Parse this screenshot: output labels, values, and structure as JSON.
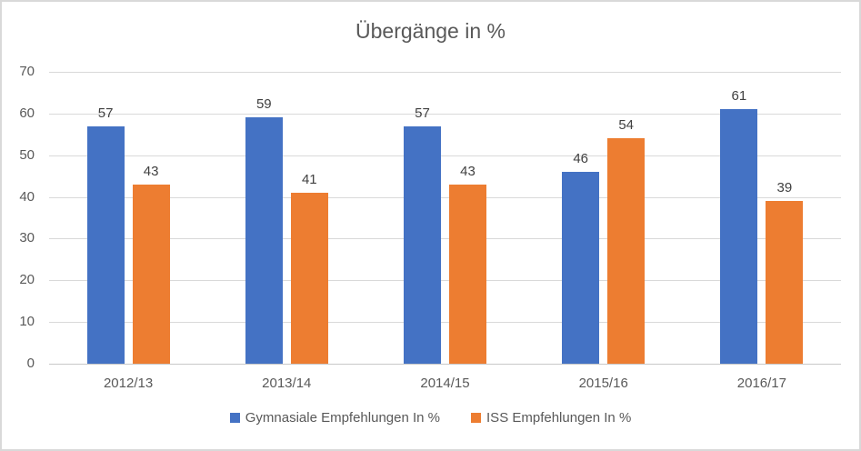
{
  "chart_data": {
    "type": "bar",
    "title": "Übergänge in %",
    "categories": [
      "2012/13",
      "2013/14",
      "2014/15",
      "2015/16",
      "2016/17"
    ],
    "series": [
      {
        "name": "Gymnasiale Empfehlungen In %",
        "color": "#4472C4",
        "values": [
          57,
          59,
          57,
          46,
          61
        ]
      },
      {
        "name": "ISS Empfehlungen In %",
        "color": "#ED7D31",
        "values": [
          43,
          41,
          43,
          54,
          39
        ]
      }
    ],
    "xlabel": "",
    "ylabel": "",
    "ylim": [
      0,
      70
    ],
    "yticks": [
      0,
      10,
      20,
      30,
      40,
      50,
      60,
      70
    ],
    "grid": "horizontal",
    "gridline_color": "#D9D9D9",
    "data_labels": true,
    "data_label_color": "#404040",
    "axis_text_color": "#595959",
    "title_color": "#595959",
    "legend_position": "bottom",
    "legend": [
      "Gymnasiale Empfehlungen In %",
      "ISS Empfehlungen In %"
    ]
  }
}
